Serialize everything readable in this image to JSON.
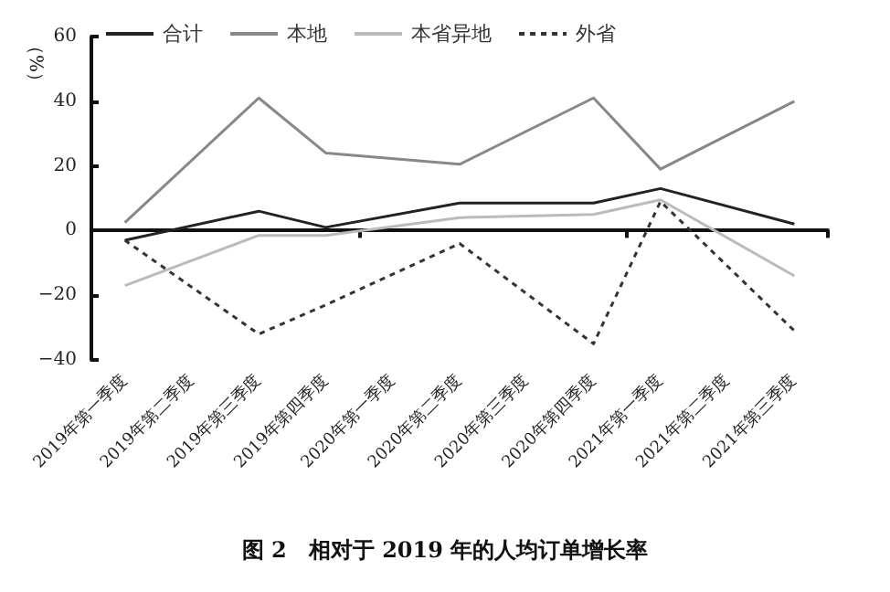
{
  "chart_data": {
    "type": "line",
    "title": "图 2　相对于 2019 年的人均订单增长率",
    "ylabel": "（%）",
    "categories": [
      "2019年第一季度",
      "2019年第二季度",
      "2019年第三季度",
      "2019年第四季度",
      "2020年第一季度",
      "2020年第二季度",
      "2020年第三季度",
      "2020年第四季度",
      "2021年第一季度",
      "2021年第二季度",
      "2021年第三季度"
    ],
    "series": [
      {
        "name": "合计",
        "color": "#222222",
        "line_style": "solid",
        "values": [
          -3,
          null,
          6,
          1,
          null,
          8.5,
          null,
          8.5,
          13,
          null,
          2
        ]
      },
      {
        "name": "本地",
        "color": "#888888",
        "line_style": "solid",
        "values": [
          2.5,
          null,
          41,
          24,
          null,
          20.5,
          null,
          41,
          19,
          null,
          40
        ]
      },
      {
        "name": "本省异地",
        "color": "#bbbbbb",
        "line_style": "solid",
        "values": [
          -17,
          null,
          -1.5,
          -1.5,
          null,
          4,
          null,
          5,
          9.5,
          null,
          -14
        ]
      },
      {
        "name": "外省",
        "color": "#333333",
        "line_style": "dashed",
        "values": [
          -3,
          null,
          -32,
          -23,
          null,
          -4,
          null,
          -35,
          9,
          null,
          -31
        ]
      }
    ],
    "ylim": [
      -40,
      60
    ],
    "yticks": [
      -40,
      -20,
      0,
      20,
      40,
      60
    ],
    "legend": "top",
    "marker": "none"
  }
}
